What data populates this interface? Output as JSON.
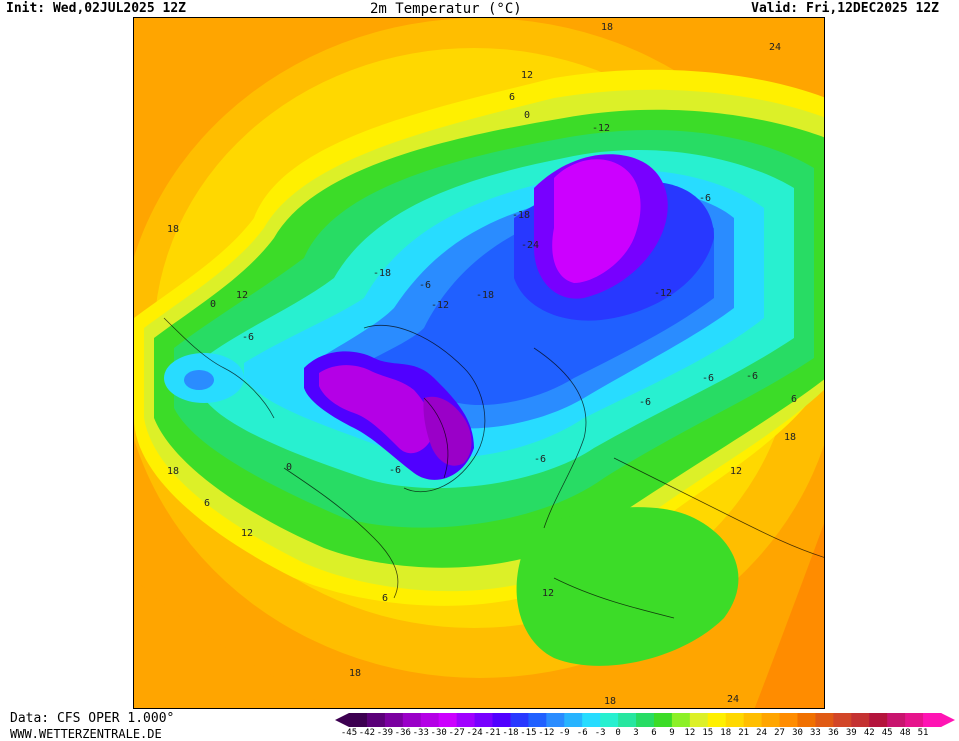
{
  "header": {
    "init": "Init: Wed,02JUL2025 12Z",
    "title": "2m Temperatur (°C)",
    "valid": "Valid: Fri,12DEC2025 12Z"
  },
  "footer": {
    "data_source": "Data: CFS OPER 1.000°",
    "website": "WWW.WETTERZENTRALE.DE"
  },
  "map": {
    "contour_labels": [
      "18",
      "24",
      "12",
      "6",
      "0",
      "-12",
      "-18",
      "-24",
      "18",
      "12",
      "0",
      "-6",
      "-18",
      "-6",
      "-12",
      "-18",
      "-12",
      "-6",
      "6",
      "-6",
      "0",
      "-6",
      "-6",
      "18",
      "18",
      "6",
      "12",
      "6",
      "12",
      "18",
      "18",
      "24",
      "-6",
      "-6",
      "12"
    ]
  },
  "colorbar": {
    "ticks": [
      "-45",
      "-42",
      "-39",
      "-36",
      "-33",
      "-30",
      "-27",
      "-24",
      "-21",
      "-18",
      "-15",
      "-12",
      "-9",
      "-6",
      "-3",
      "0",
      "3",
      "6",
      "9",
      "12",
      "15",
      "18",
      "21",
      "24",
      "27",
      "30",
      "33",
      "36",
      "39",
      "42",
      "45",
      "48",
      "51"
    ],
    "colors": [
      "#3c0050",
      "#5a0078",
      "#7a00a0",
      "#9a00c8",
      "#b400e6",
      "#cc00ff",
      "#a000ff",
      "#7800ff",
      "#5000ff",
      "#2838ff",
      "#2060ff",
      "#2a8cff",
      "#28b4ff",
      "#28dcff",
      "#28f0d0",
      "#28e6a0",
      "#28dc64",
      "#3cdc28",
      "#8cf028",
      "#dcf028",
      "#fff000",
      "#ffd800",
      "#ffbe00",
      "#ffa500",
      "#ff8c00",
      "#f07000",
      "#e05a14",
      "#d24628",
      "#c43232",
      "#b4143c",
      "#c8146e",
      "#e6148c",
      "#ff14b4"
    ]
  }
}
